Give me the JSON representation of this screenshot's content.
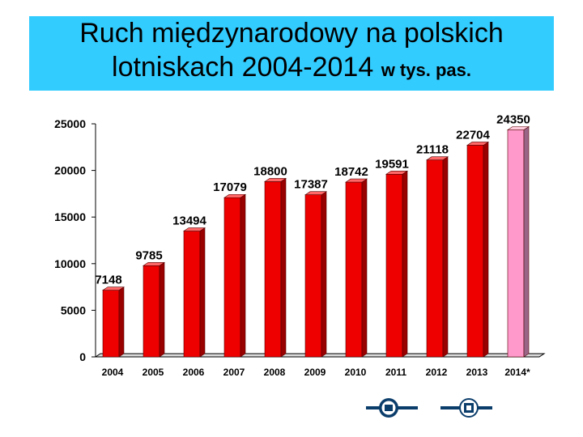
{
  "title": {
    "line1": "Ruch międzynarodowy na polskich",
    "line2_main": "lotniskach 2004-2014",
    "line2_suffix": "w tys. pas."
  },
  "chart_data": {
    "type": "bar",
    "categories": [
      "2004",
      "2005",
      "2006",
      "2007",
      "2008",
      "2009",
      "2010",
      "2011",
      "2012",
      "2013",
      "2014*"
    ],
    "values": [
      7148,
      9785,
      13494,
      17079,
      18800,
      17387,
      18742,
      19591,
      21118,
      22704,
      24350
    ],
    "data_labels": [
      "7148",
      "9785",
      "13494",
      "17079",
      "18800",
      "17387",
      "18742",
      "19591",
      "21118",
      "22704",
      "24350"
    ],
    "ylim": [
      0,
      25000
    ],
    "yticks": [
      "0",
      "5000",
      "10000",
      "15000",
      "20000",
      "25000"
    ],
    "colors": {
      "bar": "#ee0000",
      "bar_side": "#990000",
      "bar_top": "#ff6666",
      "highlight_bar": "#ff99cc",
      "highlight_side": "#996688",
      "highlight_top": "#ffccdd"
    },
    "highlight_index": 10,
    "grid": false,
    "legend": "none"
  },
  "logos": [
    "university-seal-icon",
    "institute-logo-icon"
  ]
}
